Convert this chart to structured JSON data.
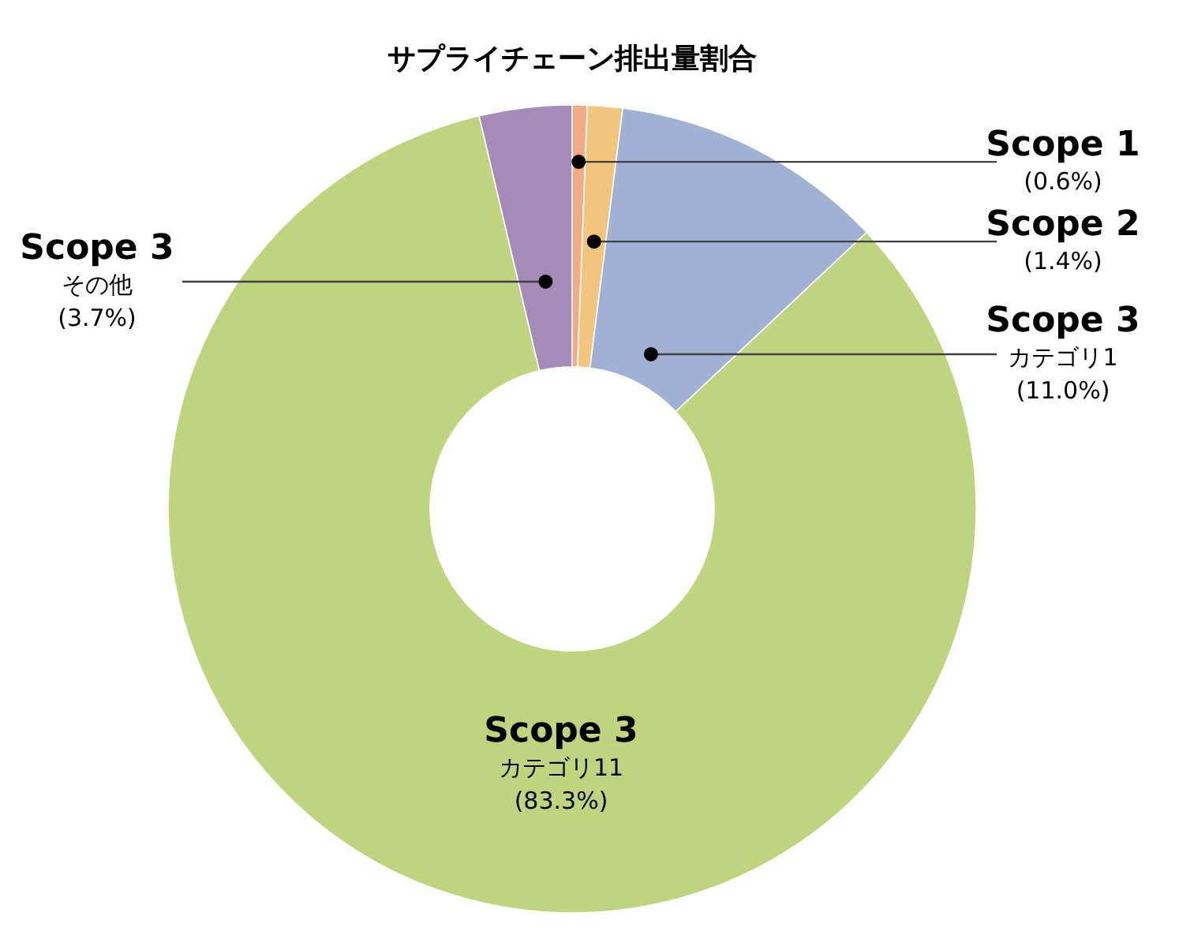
{
  "chart_data": {
    "type": "donut",
    "title": "サプライチェーン排出量割合",
    "categories": [
      "Scope 1",
      "Scope 2",
      "Scope 3\nカテゴリ1",
      "Scope 3\nカテゴリ11",
      "Scope 3\nその他"
    ],
    "values": [
      0.6,
      1.4,
      11.0,
      83.3,
      3.7
    ],
    "colors": [
      "#f2ab84",
      "#f2c47d",
      "#a0b1d4",
      "#c0d47f",
      "#a68bb8"
    ],
    "value_labels": [
      "(0.6%)",
      "(1.4%)",
      "(11.0%)",
      "(83.3%)",
      "(3.7%)"
    ]
  }
}
